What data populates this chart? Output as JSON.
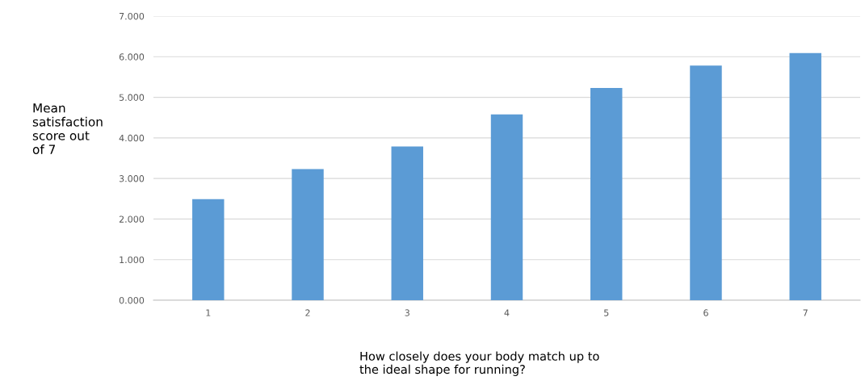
{
  "chart_data": {
    "type": "bar",
    "xlabel": "How closely does your body match up to\nthe ideal shape for running?",
    "ylabel": "Mean\nsatisfaction\nscore out\nof 7",
    "categories": [
      "1",
      "2",
      "3",
      "4",
      "5",
      "6",
      "7"
    ],
    "values": [
      2.49,
      3.23,
      3.79,
      4.58,
      5.23,
      5.78,
      6.09
    ],
    "color": "#5b9bd5",
    "ylim": [
      0,
      7
    ],
    "yticks": [
      {
        "value": 0,
        "label": "0.000"
      },
      {
        "value": 1,
        "label": "1.000"
      },
      {
        "value": 2,
        "label": "2.000"
      },
      {
        "value": 3,
        "label": "3.000"
      },
      {
        "value": 4,
        "label": "4.000"
      },
      {
        "value": 5,
        "label": "5.000"
      },
      {
        "value": 6,
        "label": "6.000"
      },
      {
        "value": 7,
        "label": "7.000"
      }
    ],
    "grid": "y"
  }
}
